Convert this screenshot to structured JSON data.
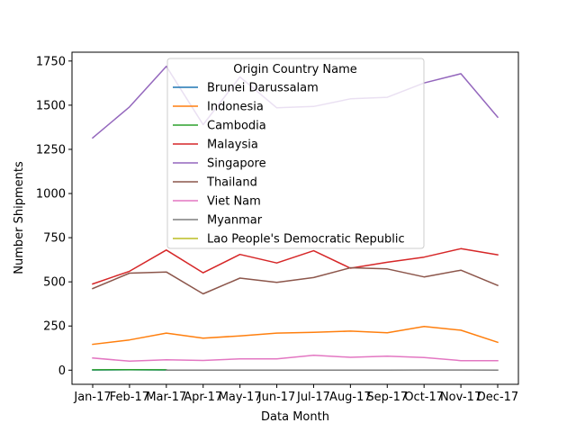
{
  "chart_data": {
    "type": "line",
    "title": "",
    "xlabel": "Data Month",
    "ylabel": "Number Shipments",
    "categories": [
      "Jan-17",
      "Feb-17",
      "Mar-17",
      "Apr-17",
      "May-17",
      "Jun-17",
      "Jul-17",
      "Aug-17",
      "Sep-17",
      "Oct-17",
      "Nov-17",
      "Dec-17"
    ],
    "ylim": [
      -80,
      1800
    ],
    "yticks": [
      0,
      250,
      500,
      750,
      1000,
      1250,
      1500,
      1750
    ],
    "grid": false,
    "legend": {
      "title": "Origin Country Name",
      "placement": "upper-center"
    },
    "series": [
      {
        "name": "Brunei Darussalam",
        "color": "#1f77b4",
        "values": [
          1,
          2,
          1,
          null,
          null,
          null,
          null,
          null,
          null,
          null,
          null,
          null
        ]
      },
      {
        "name": "Indonesia",
        "color": "#ff7f0e",
        "values": [
          146,
          171,
          210,
          181,
          194,
          210,
          214,
          221,
          212,
          247,
          226,
          158
        ]
      },
      {
        "name": "Cambodia",
        "color": "#2ca02c",
        "values": [
          2,
          3,
          2,
          null,
          null,
          null,
          null,
          null,
          null,
          null,
          null,
          null
        ]
      },
      {
        "name": "Malaysia",
        "color": "#d62728",
        "values": [
          488,
          560,
          680,
          551,
          655,
          607,
          676,
          577,
          611,
          640,
          688,
          653
        ]
      },
      {
        "name": "Singapore",
        "color": "#9467bd",
        "values": [
          1315,
          1490,
          1720,
          1390,
          1660,
          1485,
          1493,
          1536,
          1545,
          1626,
          1678,
          1432
        ]
      },
      {
        "name": "Thailand",
        "color": "#8c564b",
        "values": [
          462,
          549,
          556,
          432,
          521,
          497,
          524,
          580,
          573,
          528,
          566,
          480
        ]
      },
      {
        "name": "Viet Nam",
        "color": "#e377c2",
        "values": [
          69,
          51,
          59,
          55,
          64,
          64,
          84,
          73,
          79,
          72,
          54,
          54
        ]
      },
      {
        "name": "Myanmar",
        "color": "#7f7f7f",
        "values": [
          null,
          null,
          0,
          0,
          0,
          0,
          0,
          0,
          0,
          1,
          1,
          0
        ]
      },
      {
        "name": "Lao People's Democratic Republic",
        "color": "#bcbd22",
        "values": [
          null,
          null,
          null,
          null,
          null,
          null,
          null,
          null,
          1,
          null,
          null,
          null
        ]
      }
    ]
  }
}
